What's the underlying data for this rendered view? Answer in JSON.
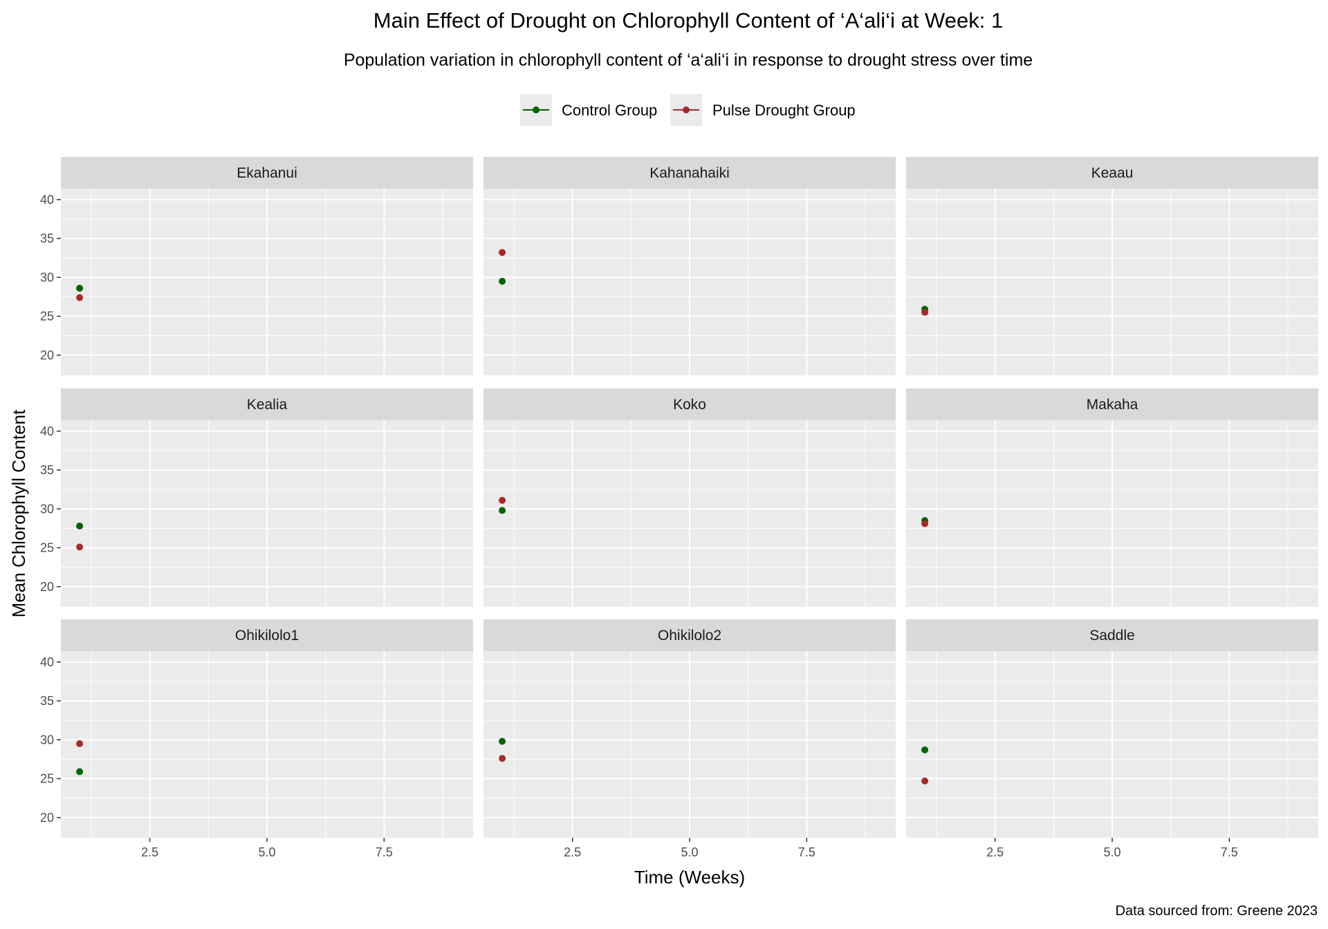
{
  "chart_data": {
    "type": "scatter",
    "title": "Main Effect of Drought on Chlorophyll Content of ‘A‘ali‘i at Week: 1",
    "subtitle": "Population variation in chlorophyll content of ‘a‘ali‘i in response to drought stress over time",
    "xlabel": "Time (Weeks)",
    "ylabel": "Mean Chlorophyll Content",
    "caption": "Data sourced from: Greene 2023",
    "xlim": [
      0.6,
      9.4
    ],
    "ylim": [
      17.4,
      41.4
    ],
    "xticks": [
      2.5,
      5.0,
      7.5
    ],
    "xtick_labels": [
      "2.5",
      "5.0",
      "7.5"
    ],
    "yticks": [
      20,
      25,
      30,
      35,
      40
    ],
    "ytick_labels": [
      "20",
      "25",
      "30",
      "35",
      "40"
    ],
    "grid": true,
    "legend_position": "top",
    "series": [
      {
        "name": "Control Group",
        "color": "#006400"
      },
      {
        "name": "Pulse Drought Group",
        "color": "#A52A2A"
      }
    ],
    "facets": [
      {
        "name": "Ekahanui",
        "control": {
          "x": 1,
          "y": 28.6
        },
        "drought": {
          "x": 1,
          "y": 27.4
        }
      },
      {
        "name": "Kahanahaiki",
        "control": {
          "x": 1,
          "y": 29.5
        },
        "drought": {
          "x": 1,
          "y": 33.2
        }
      },
      {
        "name": "Keaau",
        "control": {
          "x": 1,
          "y": 25.9
        },
        "drought": {
          "x": 1,
          "y": 25.5
        }
      },
      {
        "name": "Kealia",
        "control": {
          "x": 1,
          "y": 27.8
        },
        "drought": {
          "x": 1,
          "y": 25.1
        }
      },
      {
        "name": "Koko",
        "control": {
          "x": 1,
          "y": 29.8
        },
        "drought": {
          "x": 1,
          "y": 31.1
        }
      },
      {
        "name": "Makaha",
        "control": {
          "x": 1,
          "y": 28.5
        },
        "drought": {
          "x": 1,
          "y": 28.1
        }
      },
      {
        "name": "Ohikilolo1",
        "control": {
          "x": 1,
          "y": 25.9
        },
        "drought": {
          "x": 1,
          "y": 29.5
        }
      },
      {
        "name": "Ohikilolo2",
        "control": {
          "x": 1,
          "y": 29.8
        },
        "drought": {
          "x": 1,
          "y": 27.6
        }
      },
      {
        "name": "Saddle",
        "control": {
          "x": 1,
          "y": 28.7
        },
        "drought": {
          "x": 1,
          "y": 24.7
        }
      }
    ]
  }
}
